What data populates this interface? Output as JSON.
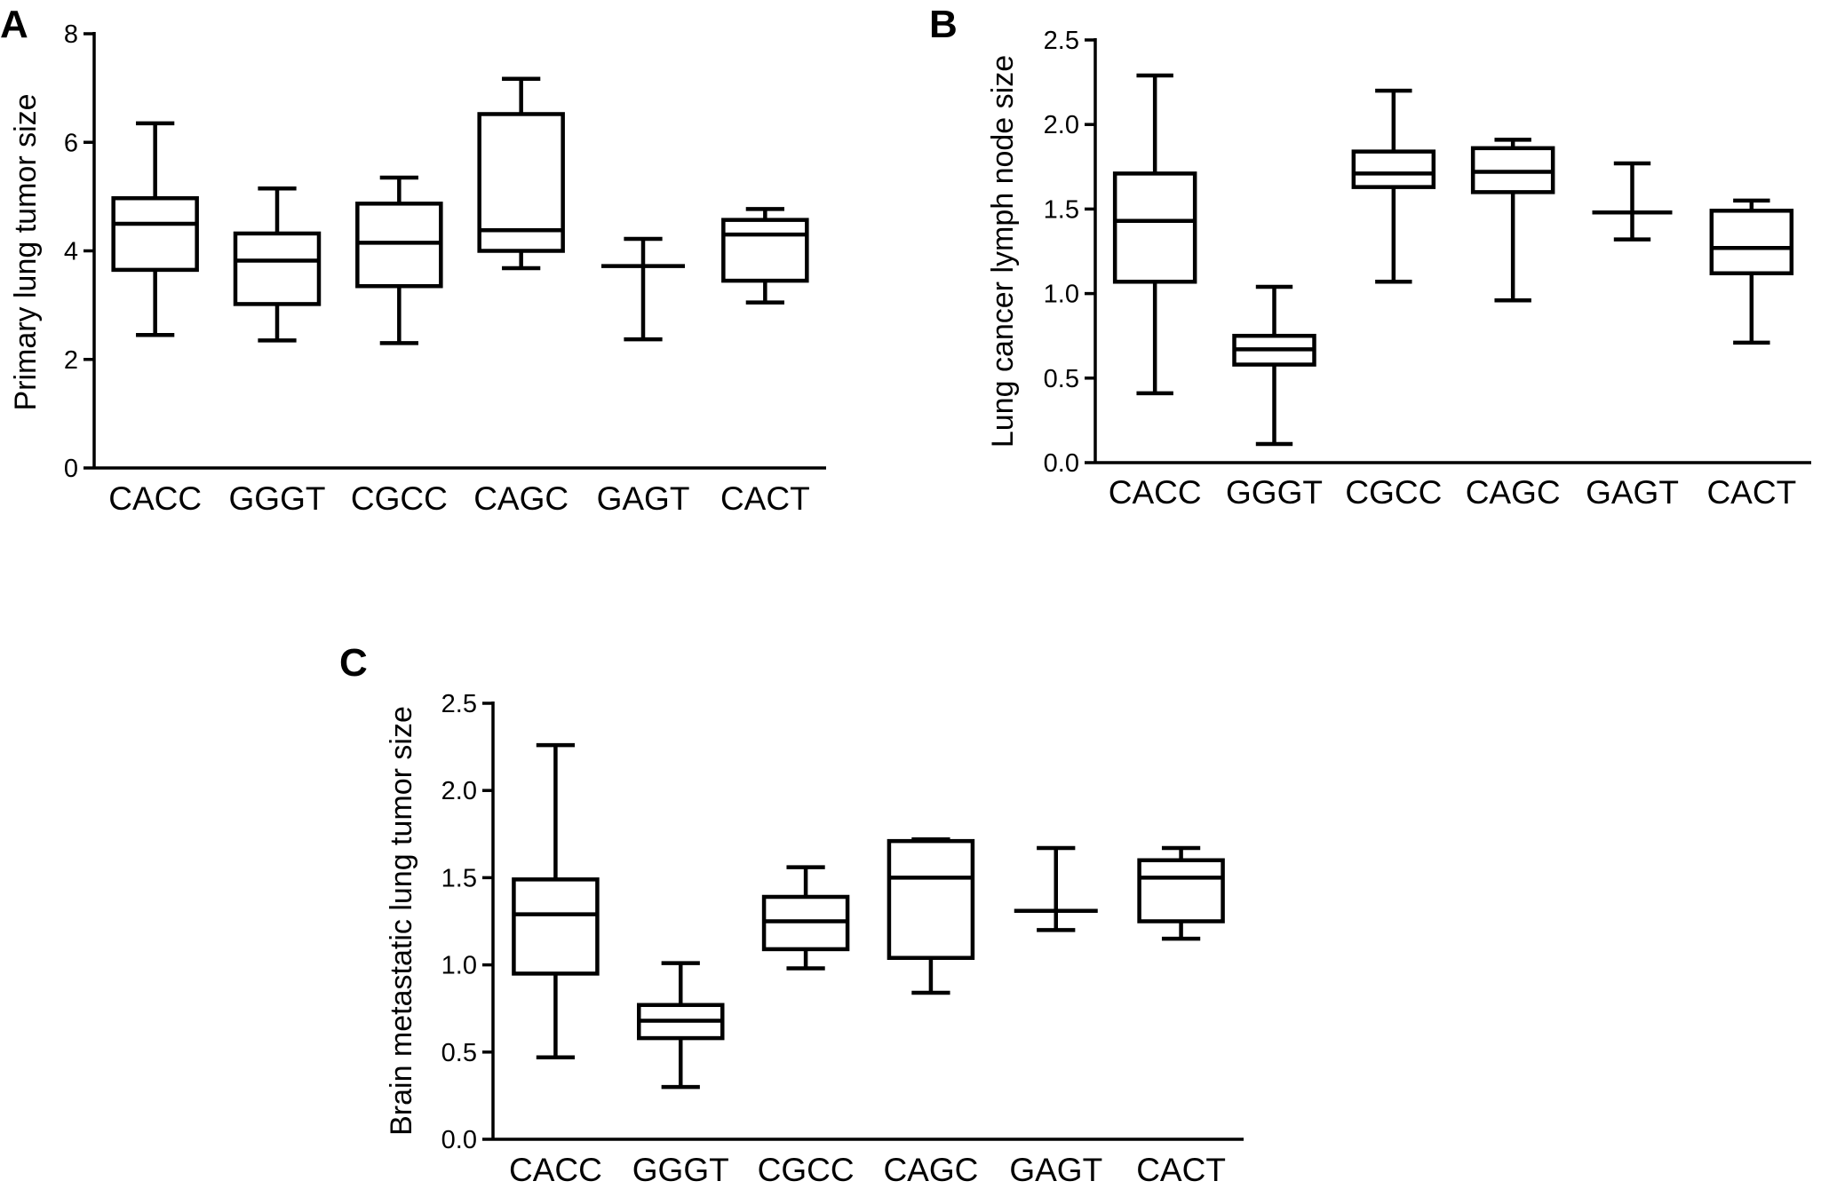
{
  "chart_data": [
    {
      "panel": "A",
      "type": "box",
      "ylabel": "Primary lung tumor size",
      "ylim": [
        0,
        8
      ],
      "yticks": [
        "0",
        "2",
        "4",
        "6",
        "8"
      ],
      "categories": [
        "CACC",
        "GGGT",
        "CGCC",
        "CAGC",
        "GAGT",
        "CACT"
      ],
      "boxes": [
        {
          "min": 2.45,
          "q1": 3.65,
          "median": 4.5,
          "q3": 4.97,
          "max": 6.35
        },
        {
          "min": 2.35,
          "q1": 3.02,
          "median": 3.82,
          "q3": 4.32,
          "max": 5.15
        },
        {
          "min": 2.3,
          "q1": 3.35,
          "median": 4.15,
          "q3": 4.87,
          "max": 5.35
        },
        {
          "min": 3.68,
          "q1": 4.0,
          "median": 4.38,
          "q3": 6.52,
          "max": 7.17
        },
        {
          "min": 2.37,
          "q1": 3.72,
          "median": 3.72,
          "q3": 3.72,
          "max": 4.22
        },
        {
          "min": 3.05,
          "q1": 3.45,
          "median": 4.3,
          "q3": 4.57,
          "max": 4.77
        }
      ]
    },
    {
      "panel": "B",
      "type": "box",
      "ylabel": "Lung cancer lymph node size",
      "ylim": [
        0,
        2.5
      ],
      "yticks": [
        "0.0",
        "0.5",
        "1.0",
        "1.5",
        "2.0",
        "2.5"
      ],
      "categories": [
        "CACC",
        "GGGT",
        "CGCC",
        "CAGC",
        "GAGT",
        "CACT"
      ],
      "boxes": [
        {
          "min": 0.41,
          "q1": 1.07,
          "median": 1.43,
          "q3": 1.71,
          "max": 2.29
        },
        {
          "min": 0.11,
          "q1": 0.58,
          "median": 0.67,
          "q3": 0.75,
          "max": 1.04
        },
        {
          "min": 1.07,
          "q1": 1.63,
          "median": 1.71,
          "q3": 1.84,
          "max": 2.2
        },
        {
          "min": 0.96,
          "q1": 1.6,
          "median": 1.72,
          "q3": 1.86,
          "max": 1.91
        },
        {
          "min": 1.32,
          "q1": 1.48,
          "median": 1.48,
          "q3": 1.48,
          "max": 1.77
        },
        {
          "min": 0.71,
          "q1": 1.12,
          "median": 1.27,
          "q3": 1.49,
          "max": 1.55
        }
      ]
    },
    {
      "panel": "C",
      "type": "box",
      "ylabel": "Brain metastatic lung tumor size",
      "ylim": [
        0,
        2.5
      ],
      "yticks": [
        "0.0",
        "0.5",
        "1.0",
        "1.5",
        "2.0",
        "2.5"
      ],
      "categories": [
        "CACC",
        "GGGT",
        "CGCC",
        "CAGC",
        "GAGT",
        "CACT"
      ],
      "boxes": [
        {
          "min": 0.47,
          "q1": 0.95,
          "median": 1.29,
          "q3": 1.49,
          "max": 2.26
        },
        {
          "min": 0.3,
          "q1": 0.58,
          "median": 0.68,
          "q3": 0.77,
          "max": 1.01
        },
        {
          "min": 0.98,
          "q1": 1.09,
          "median": 1.25,
          "q3": 1.39,
          "max": 1.56
        },
        {
          "min": 0.84,
          "q1": 1.04,
          "median": 1.5,
          "q3": 1.71,
          "max": 1.72
        },
        {
          "min": 1.2,
          "q1": 1.31,
          "median": 1.31,
          "q3": 1.31,
          "max": 1.67
        },
        {
          "min": 1.15,
          "q1": 1.25,
          "median": 1.5,
          "q3": 1.6,
          "max": 1.67
        }
      ]
    }
  ]
}
